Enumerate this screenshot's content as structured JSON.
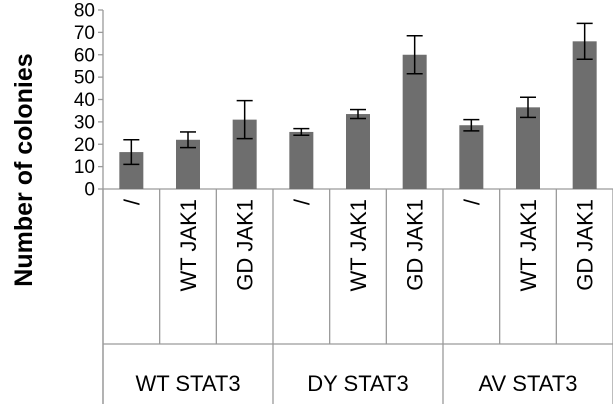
{
  "chart_data": {
    "type": "bar",
    "ylabel": "Number of colonies",
    "xlabel": "",
    "ylim": [
      0,
      80
    ],
    "yticks": [
      0,
      10,
      20,
      30,
      40,
      50,
      60,
      70,
      80
    ],
    "grid": false,
    "legend": "none",
    "bar_color": "#6e6e6e",
    "categories": [
      "/",
      "WT JAK1",
      "GD JAK1",
      "/",
      "WT JAK1",
      "GD JAK1",
      "/",
      "WT JAK1",
      "GD JAK1"
    ],
    "groups": [
      {
        "label": "WT STAT3",
        "span": 3
      },
      {
        "label": "DY STAT3",
        "span": 3
      },
      {
        "label": "AV STAT3",
        "span": 3
      }
    ],
    "values": [
      16.5,
      22,
      31,
      25.5,
      33.5,
      60,
      28.5,
      36.5,
      66
    ],
    "error": [
      5.5,
      3.5,
      8.5,
      1.5,
      2,
      8.5,
      2.5,
      4.5,
      8
    ]
  }
}
